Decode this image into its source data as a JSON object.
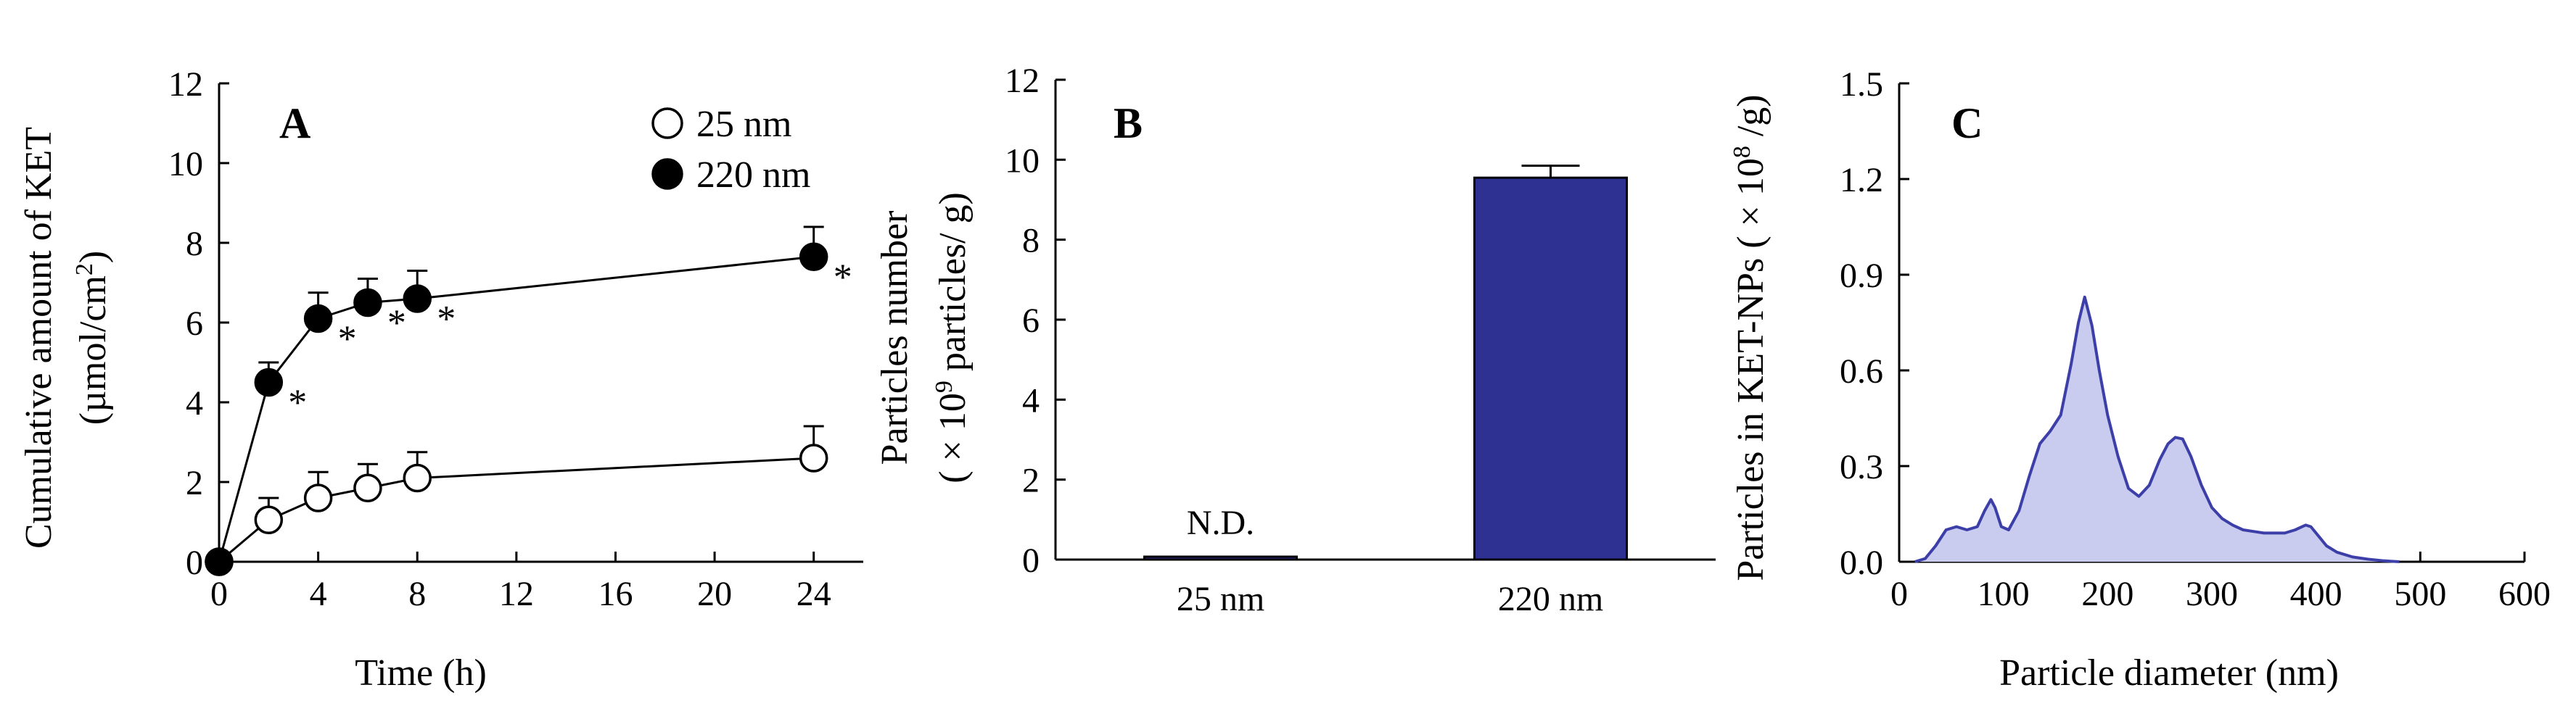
{
  "chart_data": [
    {
      "panel": "A",
      "type": "line",
      "xlabel": "Time (h)",
      "ylabel_line1": "Cumulative amount of KET",
      "ylabel_line2_prefix": "(µmol/cm",
      "ylabel_line2_sup": "2",
      "ylabel_line2_suffix": ")",
      "xlim": [
        0,
        26
      ],
      "ylim": [
        0,
        12
      ],
      "xticks": [
        0,
        4,
        8,
        12,
        16,
        20,
        24
      ],
      "yticks": [
        0,
        2,
        4,
        6,
        8,
        10,
        12
      ],
      "legend_position": "top-right",
      "significance_marker": "*",
      "series": [
        {
          "name": "25 nm",
          "marker": "open-circle",
          "x": [
            0,
            2,
            4,
            6,
            8,
            24
          ],
          "y": [
            0,
            1.05,
            1.6,
            1.85,
            2.1,
            2.6
          ],
          "err": [
            0,
            0.55,
            0.65,
            0.6,
            0.65,
            0.8
          ],
          "significant": [
            false,
            false,
            false,
            false,
            false,
            false
          ]
        },
        {
          "name": "220 nm",
          "marker": "filled-circle",
          "x": [
            0,
            2,
            4,
            6,
            8,
            24
          ],
          "y": [
            0,
            4.5,
            6.1,
            6.5,
            6.6,
            7.65
          ],
          "err": [
            0,
            0.5,
            0.65,
            0.6,
            0.7,
            0.75
          ],
          "significant": [
            false,
            true,
            true,
            true,
            true,
            true
          ]
        }
      ]
    },
    {
      "panel": "B",
      "type": "bar",
      "ylabel_line1": "Particles number",
      "ylabel_line2_prefix": "( × 10",
      "ylabel_line2_sup": "9",
      "ylabel_line2_suffix": " particles/ g)",
      "ylim": [
        0,
        12
      ],
      "yticks": [
        0,
        2,
        4,
        6,
        8,
        10,
        12
      ],
      "categories": [
        "25 nm",
        "220 nm"
      ],
      "values": [
        0,
        9.55
      ],
      "err": [
        0,
        0.3
      ],
      "bar_labels": [
        "N.D.",
        ""
      ],
      "bar_color": "#2e3192"
    },
    {
      "panel": "C",
      "type": "area",
      "xlabel": "Particle diameter (nm)",
      "ylabel_prefix": "Particles in KET-NPs ( × 10",
      "ylabel_sup": "8",
      "ylabel_suffix": " /g)",
      "xlim": [
        0,
        600
      ],
      "ylim": [
        0,
        1.5
      ],
      "xticks": [
        0,
        100,
        200,
        300,
        400,
        500,
        600
      ],
      "yticks": [
        "0.0",
        "0.3",
        "0.6",
        "0.9",
        "1.2",
        "1.5"
      ],
      "line_color": "#3d3fa8",
      "fill_color": "#c9cbef",
      "x": [
        15,
        25,
        35,
        45,
        55,
        65,
        75,
        82,
        88,
        92,
        98,
        105,
        115,
        125,
        135,
        145,
        155,
        165,
        172,
        178,
        185,
        192,
        200,
        210,
        220,
        230,
        240,
        250,
        258,
        265,
        272,
        280,
        290,
        300,
        310,
        320,
        330,
        340,
        350,
        360,
        370,
        380,
        390,
        395,
        400,
        410,
        420,
        435,
        450,
        465,
        480
      ],
      "y": [
        0.0,
        0.01,
        0.05,
        0.1,
        0.11,
        0.1,
        0.11,
        0.16,
        0.195,
        0.17,
        0.11,
        0.1,
        0.16,
        0.27,
        0.37,
        0.41,
        0.46,
        0.62,
        0.75,
        0.83,
        0.74,
        0.6,
        0.46,
        0.33,
        0.23,
        0.205,
        0.24,
        0.32,
        0.37,
        0.39,
        0.385,
        0.33,
        0.24,
        0.17,
        0.135,
        0.115,
        0.1,
        0.095,
        0.09,
        0.09,
        0.09,
        0.1,
        0.115,
        0.11,
        0.09,
        0.05,
        0.03,
        0.015,
        0.008,
        0.003,
        0.0
      ]
    }
  ]
}
